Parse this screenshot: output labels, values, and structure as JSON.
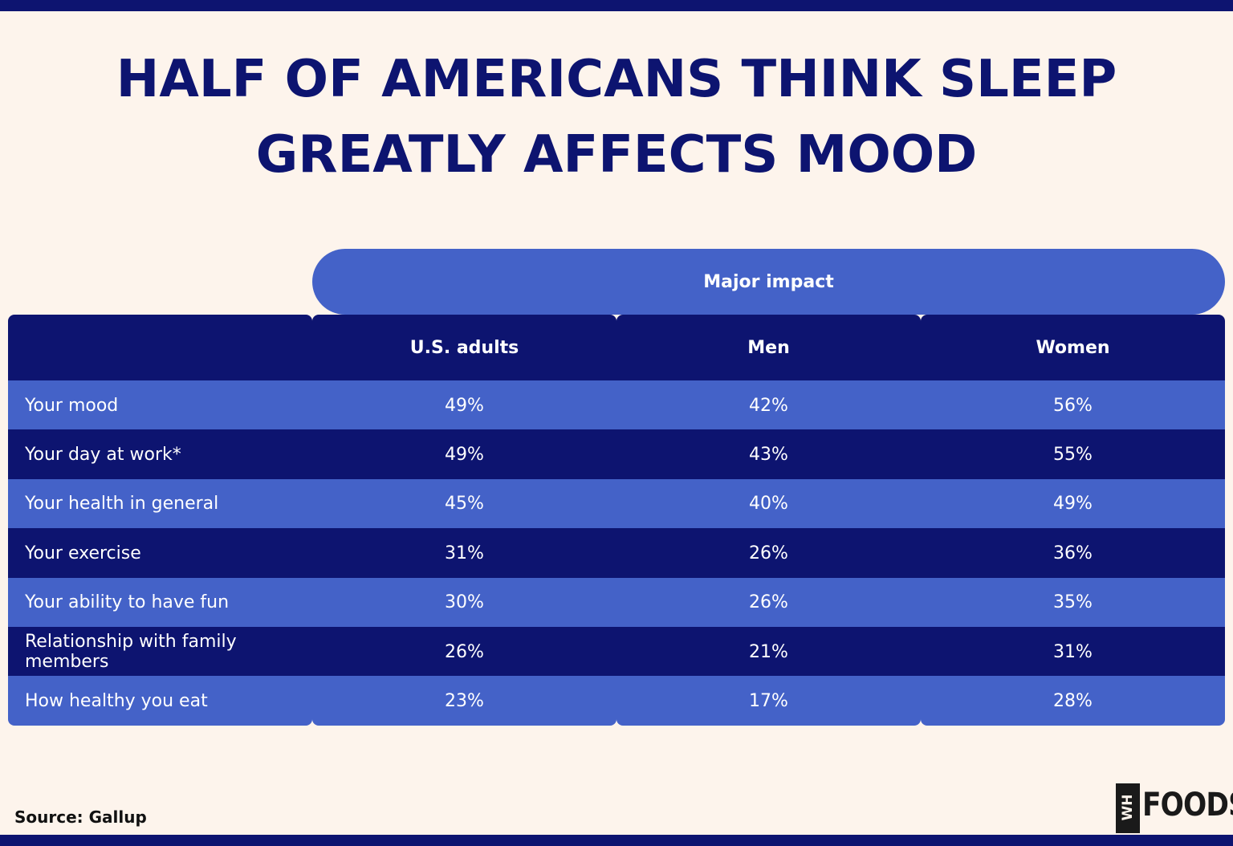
{
  "title_lines": [
    "HALF OF AMERICANS THINK SLEEP",
    "GREATLY AFFECTS MOOD"
  ],
  "group_header": "Major impact",
  "source": "Source: Gallup",
  "logo": {
    "mark": "WH",
    "text": "FOODS"
  },
  "colors": {
    "navy": "#0d1470",
    "blue": "#4462c8",
    "background": "#fdf4ec"
  },
  "chart_data": {
    "type": "table",
    "title": "HALF OF AMERICANS THINK SLEEP GREATLY AFFECTS MOOD",
    "group_header": "Major impact",
    "columns": [
      "U.S. adults",
      "Men",
      "Women"
    ],
    "rows": [
      {
        "label": "Your mood",
        "values": [
          "49%",
          "42%",
          "56%"
        ]
      },
      {
        "label": "Your day at work*",
        "values": [
          "49%",
          "43%",
          "55%"
        ]
      },
      {
        "label": "Your health in general",
        "values": [
          "45%",
          "40%",
          "49%"
        ]
      },
      {
        "label": "Your exercise",
        "values": [
          "31%",
          "26%",
          "36%"
        ]
      },
      {
        "label": "Your ability to have fun",
        "values": [
          "30%",
          "26%",
          "35%"
        ]
      },
      {
        "label": "Relationship with family members",
        "values": [
          "26%",
          "21%",
          "31%"
        ]
      },
      {
        "label": "How healthy you eat",
        "values": [
          "23%",
          "17%",
          "28%"
        ]
      }
    ]
  }
}
